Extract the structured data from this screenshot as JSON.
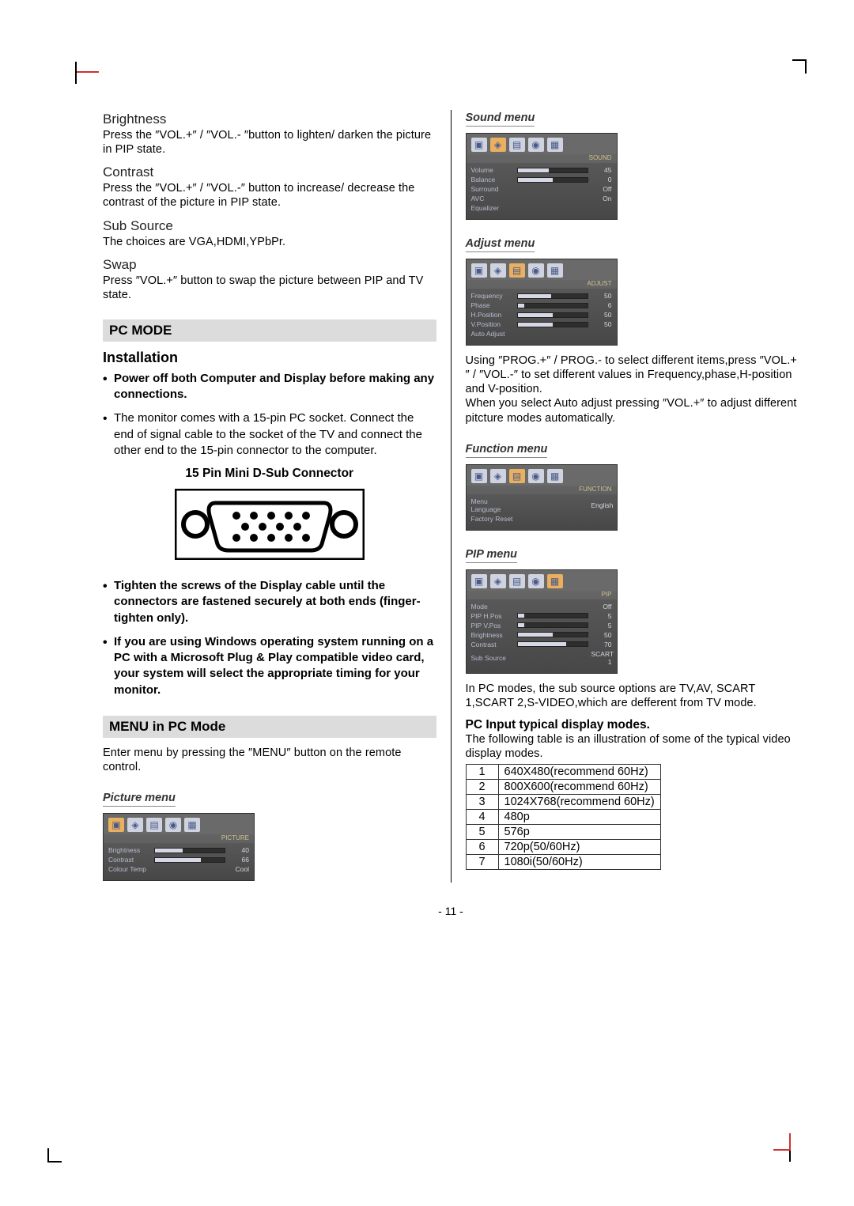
{
  "left": {
    "brightness": {
      "title": "Brightness",
      "text": "Press the ″VOL.+″ / ″VOL.- ″button to lighten/ darken the picture in PIP state."
    },
    "contrast": {
      "title": "Contrast",
      "text": "Press the ″VOL.+″ / ″VOL.-″ button to increase/ decrease the contrast of the picture in PIP state."
    },
    "subsource": {
      "title": "Sub Source",
      "text": "The choices are VGA,HDMI,YPbPr."
    },
    "swap": {
      "title": "Swap",
      "text": "Press ″VOL.+″ button to swap the picture between PIP and TV state."
    },
    "pcmode_bar": "PC MODE",
    "installation": "Installation",
    "install_b1": "Power off both Computer and Display before making any connections.",
    "install_b2": "The monitor comes with a 15-pin PC socket. Connect the end of signal cable to the socket of the TV and connect the other end to the 15-pin connector to the computer.",
    "connector_title": "15 Pin Mini D-Sub Connector",
    "install_b3": "Tighten the screws of the Display cable until the connectors are fastened securely at both ends (finger-tighten only).",
    "install_b4": "If you are using Windows operating system running on a PC with a Microsoft Plug & Play compatible video card, your system will select the appropriate timing for your monitor.",
    "menu_bar": "MENU in PC Mode",
    "menu_intro": "Enter menu by pressing the ″MENU″ button on the remote control.",
    "picture_menu": "Picture menu",
    "picture_osd": {
      "icons": [
        "▣",
        "◈",
        "▤",
        "◉",
        "▦"
      ],
      "active": 0,
      "head": "PICTURE",
      "rows": [
        {
          "lbl": "Brightness",
          "pct": 40,
          "val": "40"
        },
        {
          "lbl": "Contrast",
          "pct": 66,
          "val": "66"
        },
        {
          "lbl": "Colour Temp",
          "pct": 0,
          "val": "Cool"
        }
      ]
    }
  },
  "right": {
    "sound_menu": "Sound menu",
    "sound_osd": {
      "icons": [
        "▣",
        "◈",
        "▤",
        "◉",
        "▦"
      ],
      "active": 1,
      "head": "SOUND",
      "rows": [
        {
          "lbl": "Volume",
          "pct": 45,
          "val": "45"
        },
        {
          "lbl": "Balance",
          "pct": 50,
          "val": "0"
        },
        {
          "lbl": "Surround",
          "pct": 0,
          "val": "Off"
        },
        {
          "lbl": "AVC",
          "pct": 0,
          "val": "On"
        },
        {
          "lbl": "Equalizer",
          "pct": 0,
          "val": ""
        }
      ]
    },
    "adjust_menu": "Adjust menu",
    "adjust_osd": {
      "icons": [
        "▣",
        "◈",
        "▤",
        "◉",
        "▦"
      ],
      "active": 2,
      "head": "ADJUST",
      "rows": [
        {
          "lbl": "Frequency",
          "pct": 48,
          "val": "50"
        },
        {
          "lbl": "Phase",
          "pct": 10,
          "val": "6"
        },
        {
          "lbl": "H.Position",
          "pct": 50,
          "val": "50"
        },
        {
          "lbl": "V.Position",
          "pct": 50,
          "val": "50"
        },
        {
          "lbl": "Auto Adjust",
          "pct": 0,
          "val": ""
        }
      ]
    },
    "adjust_text1": "Using ″PROG.+″ / PROG.- to select different items,press ″VOL.+″ / ″VOL.-″ to set different values in Frequency,phase,H-position and V-position.",
    "adjust_text2": "When you select Auto adjust pressing ″VOL.+″ to adjust different pitcture modes automatically.",
    "function_menu": "Function menu",
    "function_osd": {
      "icons": [
        "▣",
        "◈",
        "▤",
        "◉",
        "▦"
      ],
      "active": 2,
      "head": "FUNCTION",
      "rows": [
        {
          "lbl": "Menu Language",
          "pct": 0,
          "val": "English"
        },
        {
          "lbl": "Factory Reset",
          "pct": 0,
          "val": ""
        }
      ]
    },
    "pip_menu": "PIP menu",
    "pip_osd": {
      "icons": [
        "▣",
        "◈",
        "▤",
        "◉",
        "▦"
      ],
      "active": 4,
      "head": "PIP",
      "rows": [
        {
          "lbl": "Mode",
          "pct": 0,
          "val": "Off"
        },
        {
          "lbl": "PIP H.Pos",
          "pct": 10,
          "val": "5"
        },
        {
          "lbl": "PIP V.Pos",
          "pct": 10,
          "val": "5"
        },
        {
          "lbl": "Brightness",
          "pct": 50,
          "val": "50"
        },
        {
          "lbl": "Contrast",
          "pct": 70,
          "val": "70"
        },
        {
          "lbl": "Sub Source",
          "pct": 0,
          "val": "SCART 1"
        }
      ]
    },
    "pip_text": "In PC modes, the sub source options are TV,AV, SCART 1,SCART 2,S-VIDEO,which are defferent from TV mode.",
    "typical_h": "PC Input typical display modes.",
    "typical_p": "The following table is an illustration of some of the typical video display modes.",
    "modes": [
      [
        "1",
        "640X480(recommend 60Hz)"
      ],
      [
        "2",
        "800X600(recommend 60Hz)"
      ],
      [
        "3",
        "1024X768(recommend 60Hz)"
      ],
      [
        "4",
        "480p"
      ],
      [
        "5",
        "576p"
      ],
      [
        "6",
        "720p(50/60Hz)"
      ],
      [
        "7",
        "1080i(50/60Hz)"
      ]
    ]
  },
  "footer": "- 11 -"
}
